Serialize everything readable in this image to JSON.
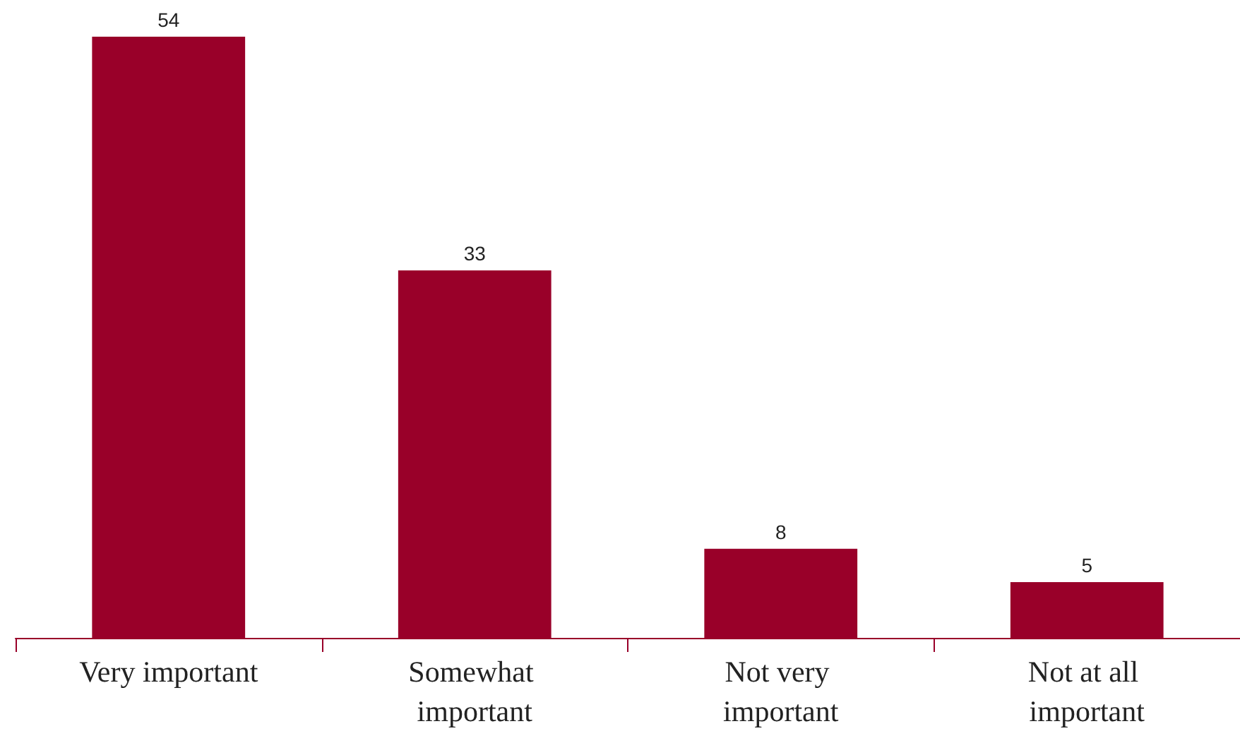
{
  "chart_data": {
    "type": "bar",
    "categories": [
      "Very important",
      "Somewhat important",
      "Not very important",
      "Not at all important"
    ],
    "values": [
      54,
      33,
      8,
      5
    ],
    "color": "#990029",
    "data_labels": true
  }
}
